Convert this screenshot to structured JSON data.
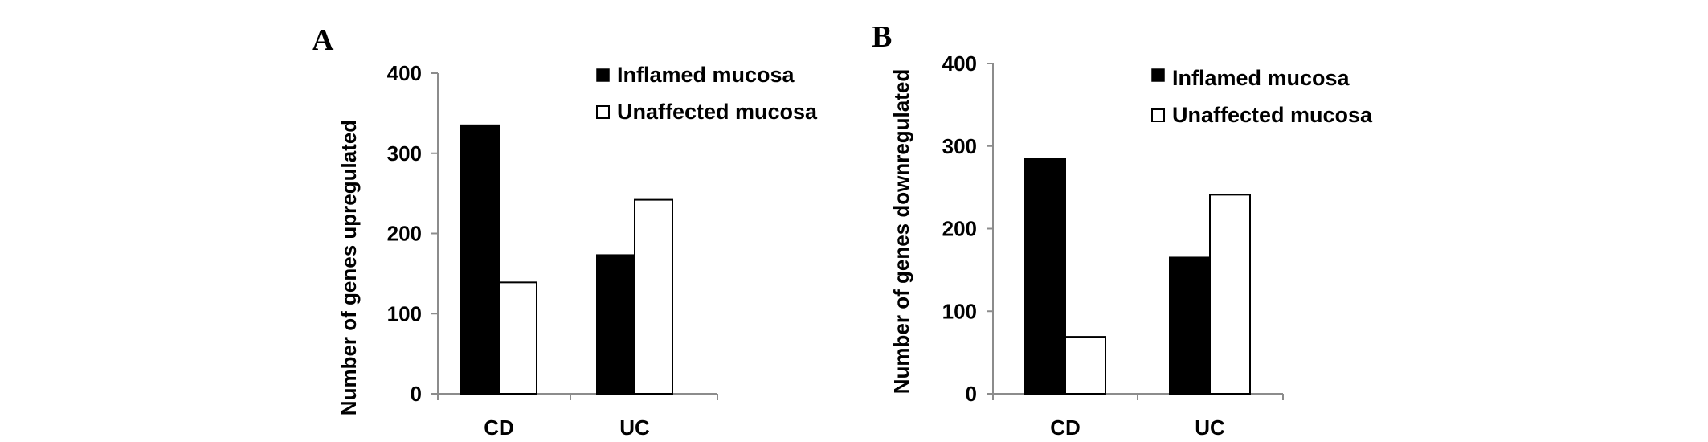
{
  "chart_data": [
    {
      "panel": "A",
      "type": "bar",
      "categories": [
        "CD",
        "UC"
      ],
      "series": [
        {
          "name": "Inflamed mucosa",
          "values": [
            335,
            173
          ],
          "color": "#000000"
        },
        {
          "name": "Unaffected mucosa",
          "values": [
            139,
            242
          ],
          "color": "#ffffff"
        }
      ],
      "xlabel": "",
      "ylabel": "Number of genes upregulated",
      "ylim": [
        0,
        400
      ],
      "yticks": [
        "0",
        "100",
        "200",
        "300",
        "400"
      ],
      "grid": false,
      "legend": "top-right"
    },
    {
      "panel": "B",
      "type": "bar",
      "categories": [
        "CD",
        "UC"
      ],
      "series": [
        {
          "name": "Inflamed mucosa",
          "values": [
            285,
            165
          ],
          "color": "#000000"
        },
        {
          "name": "Unaffected mucosa",
          "values": [
            69,
            241
          ],
          "color": "#ffffff"
        }
      ],
      "xlabel": "",
      "ylabel": "Number of genes downregulated",
      "ylim": [
        0,
        400
      ],
      "yticks": [
        "0",
        "100",
        "200",
        "300",
        "400"
      ],
      "grid": false,
      "legend": "top-right"
    }
  ]
}
